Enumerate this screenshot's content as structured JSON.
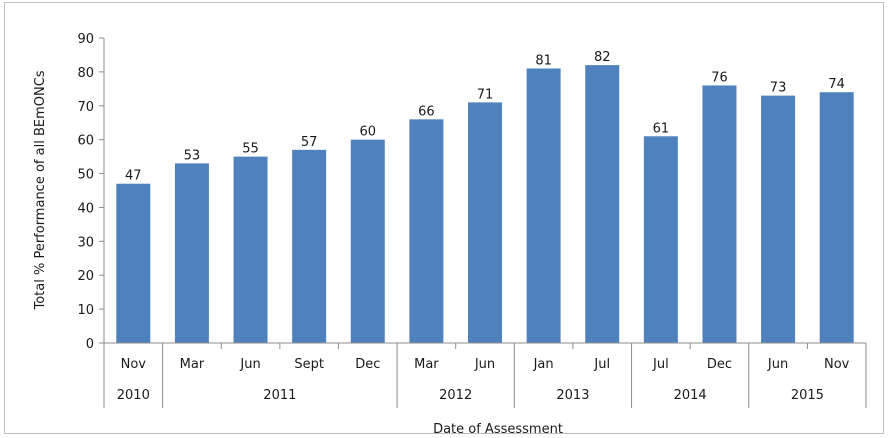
{
  "chart_data": {
    "type": "bar",
    "categories": [
      "Nov",
      "Mar",
      "Jun",
      "Sept",
      "Dec",
      "Mar",
      "Jun",
      "Jan",
      "Jul",
      "Jul",
      "Dec",
      "Jun",
      "Nov"
    ],
    "groups": [
      {
        "label": "2010",
        "count": 1
      },
      {
        "label": "2011",
        "count": 4
      },
      {
        "label": "2012",
        "count": 2
      },
      {
        "label": "2013",
        "count": 2
      },
      {
        "label": "2014",
        "count": 2
      },
      {
        "label": "2015",
        "count": 2
      }
    ],
    "values": [
      47,
      53,
      55,
      57,
      60,
      66,
      71,
      81,
      82,
      61,
      76,
      73,
      74
    ],
    "xlabel": "Date of Assessment",
    "ylabel": "Total % Performance of all BEmONCs",
    "ylim": [
      0,
      90
    ],
    "yticks": [
      0,
      10,
      20,
      30,
      40,
      50,
      60,
      70,
      80,
      90
    ],
    "bar_color": "#4f81bd",
    "data_labels": true,
    "grid": false,
    "legend": "none"
  }
}
